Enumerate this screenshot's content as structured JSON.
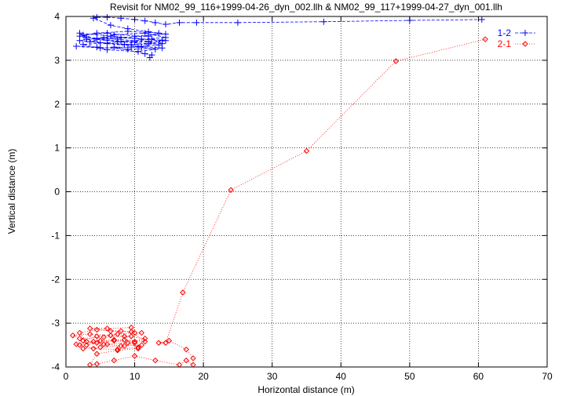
{
  "chart_data": {
    "type": "line",
    "title": "Revisit for NM02_99_116+1999-04-26_dyn_002.llh & NM02_99_117+1999-04-27_dyn_001.llh",
    "xlabel": "Horizontal distance (m)",
    "ylabel": "Vertical distance (m)",
    "xlim": [
      0,
      70
    ],
    "ylim": [
      -4,
      4
    ],
    "xticks": [
      "0",
      "10",
      "20",
      "30",
      "40",
      "50",
      "60",
      "70"
    ],
    "yticks": [
      "4",
      "3",
      "2",
      "1",
      "0",
      "-1",
      "-2",
      "-3",
      "-4"
    ],
    "grid": true,
    "legend_position": "top-right",
    "series": [
      {
        "name": "1-2",
        "color": "#0000ff",
        "marker": "plus",
        "line": "dashed",
        "points": [
          [
            60.5,
            3.93
          ],
          [
            50.0,
            3.91
          ],
          [
            37.5,
            3.88
          ],
          [
            25.0,
            3.86
          ],
          [
            19.0,
            3.86
          ],
          [
            16.5,
            3.86
          ],
          [
            14.5,
            3.82
          ],
          [
            13.0,
            3.86
          ],
          [
            11.5,
            3.9
          ],
          [
            10.0,
            3.93
          ],
          [
            8.0,
            3.96
          ],
          [
            6.0,
            3.98
          ],
          [
            4.5,
            3.98
          ],
          [
            4.0,
            3.96
          ],
          [
            6.5,
            3.8
          ],
          [
            9.0,
            3.72
          ],
          [
            12.0,
            3.65
          ],
          [
            14.5,
            3.6
          ],
          [
            10.0,
            3.55
          ],
          [
            6.0,
            3.62
          ],
          [
            2.5,
            3.58
          ],
          [
            4.5,
            3.48
          ],
          [
            8.0,
            3.42
          ],
          [
            12.0,
            3.38
          ],
          [
            14.5,
            3.45
          ],
          [
            10.0,
            3.5
          ],
          [
            5.5,
            3.52
          ],
          [
            2.0,
            3.45
          ],
          [
            6.0,
            3.38
          ],
          [
            10.5,
            3.32
          ],
          [
            14.0,
            3.28
          ],
          [
            9.0,
            3.25
          ],
          [
            4.5,
            3.3
          ],
          [
            1.5,
            3.32
          ],
          [
            5.0,
            3.28
          ],
          [
            9.5,
            3.3
          ],
          [
            13.5,
            3.35
          ],
          [
            12.0,
            3.42
          ],
          [
            7.5,
            3.48
          ],
          [
            3.0,
            3.52
          ],
          [
            2.0,
            3.62
          ],
          [
            6.5,
            3.55
          ],
          [
            11.0,
            3.48
          ],
          [
            14.5,
            3.52
          ],
          [
            11.5,
            3.62
          ],
          [
            7.0,
            3.58
          ],
          [
            3.5,
            3.42
          ],
          [
            8.5,
            3.36
          ],
          [
            13.0,
            3.25
          ],
          [
            10.5,
            3.2
          ],
          [
            6.0,
            3.24
          ],
          [
            2.5,
            3.36
          ],
          [
            7.5,
            3.42
          ],
          [
            12.5,
            3.48
          ],
          [
            14.0,
            3.38
          ],
          [
            9.5,
            3.36
          ],
          [
            5.0,
            3.4
          ],
          [
            3.0,
            3.48
          ],
          [
            8.0,
            3.52
          ],
          [
            12.0,
            3.55
          ],
          [
            13.5,
            3.62
          ],
          [
            9.0,
            3.66
          ],
          [
            4.5,
            3.62
          ],
          [
            2.0,
            3.55
          ],
          [
            6.0,
            3.46
          ],
          [
            10.0,
            3.42
          ],
          [
            14.0,
            3.46
          ],
          [
            11.0,
            3.3
          ],
          [
            7.0,
            3.3
          ],
          [
            11.5,
            3.15
          ],
          [
            12.5,
            3.12
          ],
          [
            12.2,
            3.06
          ]
        ]
      },
      {
        "name": "2-1",
        "color": "#ff0000",
        "marker": "diamond",
        "line": "dotted",
        "points": [
          [
            61.0,
            3.48
          ],
          [
            48.0,
            2.98
          ],
          [
            35.0,
            0.93
          ],
          [
            24.0,
            0.04
          ],
          [
            17.0,
            -2.3
          ],
          [
            14.5,
            -3.45
          ],
          [
            13.5,
            -3.45
          ],
          [
            15.0,
            -3.4
          ],
          [
            17.5,
            -3.6
          ],
          [
            18.5,
            -3.8
          ],
          [
            18.5,
            -3.95
          ],
          [
            17.5,
            -3.85
          ],
          [
            16.5,
            -3.95
          ],
          [
            13.0,
            -3.85
          ],
          [
            10.0,
            -3.75
          ],
          [
            7.0,
            -3.85
          ],
          [
            4.5,
            -3.93
          ],
          [
            3.5,
            -3.95
          ],
          [
            4.5,
            -3.7
          ],
          [
            7.5,
            -3.62
          ],
          [
            10.5,
            -3.58
          ],
          [
            11.0,
            -3.5
          ],
          [
            8.0,
            -3.52
          ],
          [
            5.0,
            -3.55
          ],
          [
            2.5,
            -3.58
          ],
          [
            1.5,
            -3.48
          ],
          [
            4.0,
            -3.42
          ],
          [
            7.0,
            -3.38
          ],
          [
            10.0,
            -3.42
          ],
          [
            11.5,
            -3.35
          ],
          [
            8.5,
            -3.3
          ],
          [
            5.5,
            -3.32
          ],
          [
            2.0,
            -3.35
          ],
          [
            1.0,
            -3.28
          ],
          [
            3.5,
            -3.25
          ],
          [
            6.5,
            -3.28
          ],
          [
            9.5,
            -3.3
          ],
          [
            11.0,
            -3.22
          ],
          [
            8.0,
            -3.18
          ],
          [
            4.5,
            -3.15
          ],
          [
            2.0,
            -3.22
          ],
          [
            3.0,
            -3.42
          ],
          [
            6.0,
            -3.48
          ],
          [
            9.0,
            -3.45
          ],
          [
            10.5,
            -3.55
          ],
          [
            7.5,
            -3.6
          ],
          [
            4.0,
            -3.58
          ],
          [
            2.0,
            -3.5
          ],
          [
            5.0,
            -3.4
          ],
          [
            8.5,
            -3.38
          ],
          [
            11.5,
            -3.42
          ],
          [
            9.5,
            -3.2
          ],
          [
            6.5,
            -3.18
          ],
          [
            3.5,
            -3.12
          ],
          [
            6.0,
            -3.12
          ],
          [
            9.5,
            -3.1
          ],
          [
            10.0,
            -3.22
          ],
          [
            7.5,
            -3.25
          ],
          [
            4.5,
            -3.3
          ],
          [
            2.5,
            -3.4
          ],
          [
            5.5,
            -3.48
          ],
          [
            8.5,
            -3.52
          ],
          [
            10.0,
            -3.45
          ],
          [
            7.0,
            -3.4
          ],
          [
            4.5,
            -3.45
          ],
          [
            3.0,
            -3.5
          ]
        ]
      }
    ]
  }
}
